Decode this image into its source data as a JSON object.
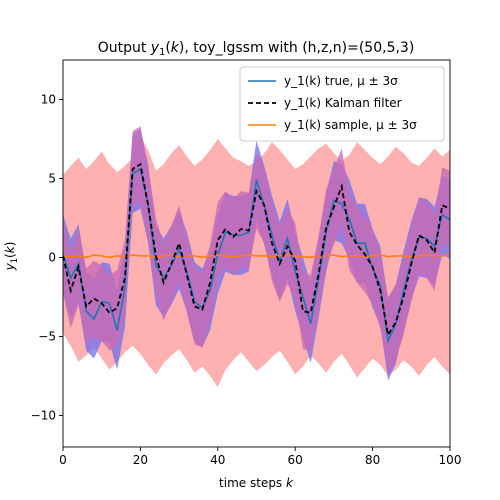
{
  "chart_data": {
    "type": "line",
    "title": "Output y_1(k), toy_lgssm with (h,z,n)=(50,5,3)",
    "xlabel": "time steps k",
    "ylabel": "y_1(k)",
    "xlim": [
      0,
      100
    ],
    "ylim": [
      -12,
      12.5
    ],
    "xticks": [
      0,
      20,
      40,
      60,
      80,
      100
    ],
    "yticks": [
      -10,
      -5,
      0,
      5,
      10
    ],
    "grid": false,
    "legend_position": "top-right",
    "x": [
      0,
      2,
      4,
      6,
      8,
      10,
      12,
      14,
      16,
      18,
      20,
      22,
      24,
      26,
      28,
      30,
      32,
      34,
      36,
      38,
      40,
      42,
      44,
      46,
      48,
      50,
      52,
      54,
      56,
      58,
      60,
      62,
      64,
      66,
      68,
      70,
      72,
      74,
      76,
      78,
      80,
      82,
      84,
      86,
      88,
      90,
      92,
      94,
      96,
      98,
      100
    ],
    "series": [
      {
        "name": "y_1(k) true, μ ± 3σ",
        "role": "true",
        "color": "#1f77b4",
        "band_color": "#6f6ff0",
        "band_halfwidth": 2.5,
        "values": [
          0.2,
          -1.3,
          -0.4,
          -3.4,
          -3.9,
          -2.8,
          -2.9,
          -4.6,
          -1.9,
          5.3,
          5.6,
          3.4,
          -0.5,
          -1.3,
          -0.5,
          0.5,
          -0.9,
          -2.8,
          -3.2,
          -2.1,
          0.2,
          1.6,
          1.4,
          1.4,
          1.6,
          4.9,
          3.3,
          1.4,
          -0.2,
          1.2,
          -0.9,
          -2.5,
          -4.2,
          -1.4,
          1.6,
          3.6,
          3.4,
          2.4,
          0.9,
          0.9,
          -0.7,
          -1.8,
          -5.3,
          -4.2,
          -2.1,
          -0.2,
          1.3,
          1.2,
          0.7,
          2.7,
          2.4
        ]
      },
      {
        "name": "y_1(k) Kalman filter",
        "role": "kalman",
        "color": "#000000",
        "band_color": "#c86ab4",
        "band_halfwidth": 2.4,
        "values": [
          0.1,
          -2.1,
          -0.6,
          -3.1,
          -2.6,
          -2.9,
          -3.5,
          -3.2,
          -1.3,
          5.6,
          5.9,
          3.3,
          0.1,
          -1.6,
          -0.4,
          0.9,
          -1.1,
          -3.1,
          -3.3,
          -1.6,
          1.1,
          1.8,
          1.3,
          1.8,
          1.7,
          4.2,
          3.3,
          0.9,
          -0.4,
          0.7,
          -0.2,
          -3.4,
          -3.5,
          -1.1,
          1.9,
          3.2,
          4.5,
          1.6,
          0.8,
          0.2,
          -0.6,
          -2.1,
          -4.9,
          -4.1,
          -2.5,
          -0.4,
          1.4,
          1.1,
          0.3,
          3.3,
          3.1
        ]
      },
      {
        "name": "y_1(k) sample, μ ± 3σ",
        "role": "sample",
        "color": "#ff7f0e",
        "band_color": "#ffb0b0",
        "values": [
          0.1,
          0.05,
          0.1,
          0.0,
          0.15,
          0.1,
          0.0,
          0.1,
          0.05,
          0.15,
          0.1,
          0.1,
          0.0,
          0.1,
          0.15,
          0.05,
          0.1,
          0.1,
          0.0,
          0.1,
          0.15,
          0.1,
          0.05,
          0.1,
          0.15,
          0.1,
          0.1,
          0.05,
          0.1,
          0.15,
          0.1,
          0.05,
          0.0,
          0.1,
          0.1,
          0.15,
          0.05,
          0.1,
          0.1,
          0.05,
          0.1,
          0.15,
          0.05,
          0.1,
          0.1,
          0.0,
          0.1,
          0.15,
          0.1,
          0.1,
          0.15
        ],
        "upper": [
          5.2,
          5.8,
          6.3,
          5.6,
          6.1,
          6.7,
          5.9,
          5.4,
          5.8,
          6.3,
          7.7,
          6.8,
          5.5,
          5.9,
          6.6,
          7.1,
          6.4,
          5.8,
          6.2,
          6.8,
          7.5,
          6.9,
          6.3,
          6.1,
          5.8,
          6.1,
          6.6,
          7.3,
          6.8,
          6.2,
          5.6,
          5.9,
          6.4,
          6.9,
          7.2,
          6.6,
          6.1,
          6.5,
          7.3,
          6.8,
          6.3,
          5.9,
          6.4,
          7.0,
          6.6,
          6.0,
          5.8,
          6.3,
          6.9,
          6.4,
          6.8
        ],
        "lower": [
          -4.8,
          -5.6,
          -6.6,
          -6.2,
          -5.7,
          -6.4,
          -7.1,
          -6.6,
          -6.0,
          -5.6,
          -6.1,
          -6.8,
          -7.4,
          -6.7,
          -6.2,
          -5.8,
          -6.5,
          -7.3,
          -6.9,
          -7.5,
          -8.2,
          -7.1,
          -6.5,
          -6.0,
          -6.6,
          -7.2,
          -6.8,
          -6.3,
          -5.9,
          -6.6,
          -7.4,
          -6.9,
          -6.2,
          -6.7,
          -7.3,
          -6.6,
          -6.1,
          -6.8,
          -7.6,
          -7.0,
          -6.4,
          -6.8,
          -7.5,
          -7.1,
          -6.5,
          -6.9,
          -7.5,
          -6.8,
          -6.3,
          -6.9,
          -7.4
        ]
      }
    ],
    "legend": [
      {
        "label": "y_1(k) true, μ ± 3σ",
        "color": "#1f77b4",
        "dash": "solid"
      },
      {
        "label": "y_1(k) Kalman filter",
        "color": "#000000",
        "dash": "dashed"
      },
      {
        "label": "y_1(k) sample, μ ± 3σ",
        "color": "#ff7f0e",
        "dash": "solid"
      }
    ]
  }
}
